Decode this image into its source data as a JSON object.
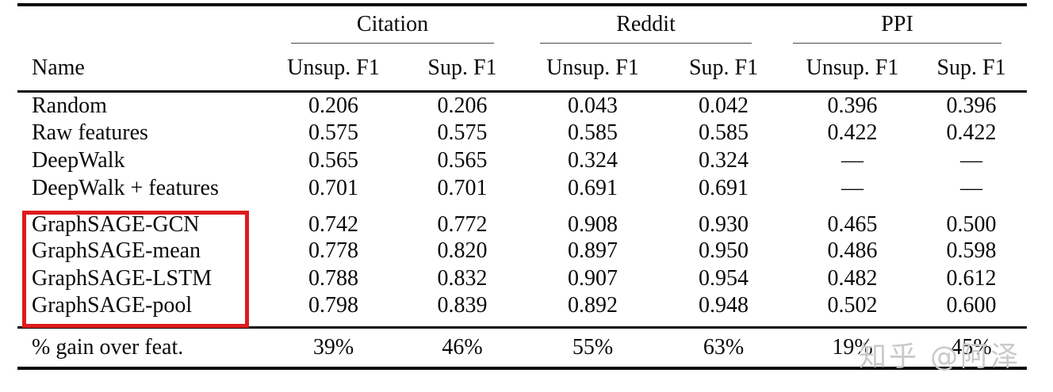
{
  "table": {
    "groups": [
      {
        "label": "Citation"
      },
      {
        "label": "Reddit"
      },
      {
        "label": "PPI"
      }
    ],
    "name_header": "Name",
    "sub_headers": [
      "Unsup. F1",
      "Sup. F1",
      "Unsup. F1",
      "Sup. F1",
      "Unsup. F1",
      "Sup. F1"
    ],
    "baseline_rows": [
      {
        "name": "Random",
        "values": [
          "0.206",
          "0.206",
          "0.043",
          "0.042",
          "0.396",
          "0.396"
        ],
        "bold": [
          false,
          false,
          false,
          false,
          false,
          false
        ]
      },
      {
        "name": "Raw features",
        "values": [
          "0.575",
          "0.575",
          "0.585",
          "0.585",
          "0.422",
          "0.422"
        ],
        "bold": [
          false,
          false,
          false,
          false,
          false,
          false
        ]
      },
      {
        "name": "DeepWalk",
        "values": [
          "0.565",
          "0.565",
          "0.324",
          "0.324",
          "—",
          "—"
        ],
        "bold": [
          false,
          false,
          false,
          false,
          false,
          false
        ]
      },
      {
        "name": "DeepWalk + features",
        "values": [
          "0.701",
          "0.701",
          "0.691",
          "0.691",
          "—",
          "—"
        ],
        "bold": [
          false,
          false,
          false,
          false,
          false,
          false
        ]
      }
    ],
    "graphsage_rows": [
      {
        "name": "GraphSAGE-GCN",
        "values": [
          "0.742",
          "0.772",
          "0.908",
          "0.930",
          "0.465",
          "0.500"
        ],
        "bold": [
          false,
          false,
          true,
          false,
          false,
          false
        ]
      },
      {
        "name": "GraphSAGE-mean",
        "values": [
          "0.778",
          "0.820",
          "0.897",
          "0.950",
          "0.486",
          "0.598"
        ],
        "bold": [
          false,
          false,
          false,
          false,
          false,
          false
        ]
      },
      {
        "name": "GraphSAGE-LSTM",
        "values": [
          "0.788",
          "0.832",
          "0.907",
          "0.954",
          "0.482",
          "0.612"
        ],
        "bold": [
          false,
          false,
          true,
          true,
          false,
          true
        ]
      },
      {
        "name": "GraphSAGE-pool",
        "values": [
          "0.798",
          "0.839",
          "0.892",
          "0.948",
          "0.502",
          "0.600"
        ],
        "bold": [
          true,
          true,
          false,
          false,
          true,
          false
        ]
      }
    ],
    "gain_row": {
      "name": "% gain over feat.",
      "values": [
        "39%",
        "46%",
        "55%",
        "63%",
        "19%",
        "45%"
      ]
    }
  },
  "highlight": {
    "color": "#dd1c1c"
  },
  "watermark": {
    "text": "知乎 @阿泽",
    "color": "#c9c9c9"
  }
}
